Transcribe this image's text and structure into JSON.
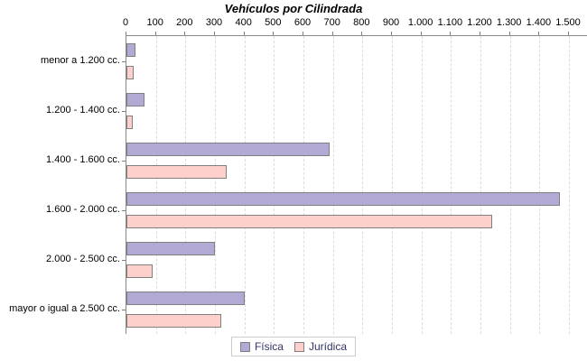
{
  "chart_data": {
    "type": "bar",
    "orientation": "horizontal",
    "title": "Vehículos por Cilindrada",
    "categories": [
      "menor a 1.200 cc.",
      "1.200 - 1.400 cc.",
      "1.400 - 1.600 cc.",
      "1.600 - 2.000 cc.",
      "2.000 - 2.500 cc.",
      "mayor o igual a 2.500 cc."
    ],
    "series": [
      {
        "name": "Física",
        "color": "#b3a9d5",
        "values": [
          30,
          60,
          690,
          1470,
          300,
          400
        ]
      },
      {
        "name": "Jurídica",
        "color": "#fdd0cc",
        "values": [
          25,
          20,
          340,
          1240,
          90,
          320
        ]
      }
    ],
    "axis": {
      "min": 0,
      "max": 1500,
      "tick_step": 100,
      "tick_labels": [
        "0",
        "100",
        "200",
        "300",
        "400",
        "500",
        "600",
        "700",
        "800",
        "900",
        "1.000",
        "1.100",
        "1.200",
        "1.300",
        "1.400",
        "1.500"
      ]
    },
    "grid": true,
    "legend_position": "bottom",
    "colors": {
      "bar_border": "#7f7f7f",
      "axis_line": "#888888",
      "gridline": "#dcdcdc",
      "legend_text": "#333366",
      "title_text": "#000000"
    }
  }
}
